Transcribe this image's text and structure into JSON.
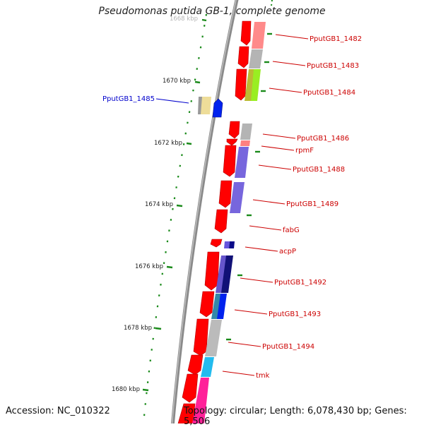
{
  "title": "Pseudomonas putida GB-1, complete genome",
  "accession": "Accession: NC_010322",
  "topology": "Topology: circular; Length: 6,078,430 bp; Genes: 5,506",
  "scale_labels": [
    "1668 kbp",
    "1670 kbp",
    "1672 kbp",
    "1674 kbp",
    "1676 kbp",
    "1678 kbp",
    "1680 kbp"
  ],
  "gene_labels": [
    {
      "text": "PputGB1_1482",
      "color": "#cc0000"
    },
    {
      "text": "PputGB1_1483",
      "color": "#cc0000"
    },
    {
      "text": "PputGB1_1484",
      "color": "#cc0000"
    },
    {
      "text": "PputGB1_1485",
      "color": "#0000cc"
    },
    {
      "text": "PputGB1_1486",
      "color": "#cc0000"
    },
    {
      "text": "rpmF",
      "color": "#cc0000"
    },
    {
      "text": "PputGB1_1488",
      "color": "#cc0000"
    },
    {
      "text": "PputGB1_1489",
      "color": "#cc0000"
    },
    {
      "text": "fabG",
      "color": "#cc0000"
    },
    {
      "text": "acpP",
      "color": "#cc0000"
    },
    {
      "text": "PputGB1_1492",
      "color": "#cc0000"
    },
    {
      "text": "PputGB1_1493",
      "color": "#cc0000"
    },
    {
      "text": "PputGB1_1494",
      "color": "#cc0000"
    },
    {
      "text": "tmk",
      "color": "#cc0000"
    }
  ],
  "colors": {
    "backbone": "#8a8a8a",
    "cds": "#ff0000",
    "reverse_cds": "#0022ee",
    "scale": "#1a8a1a"
  }
}
